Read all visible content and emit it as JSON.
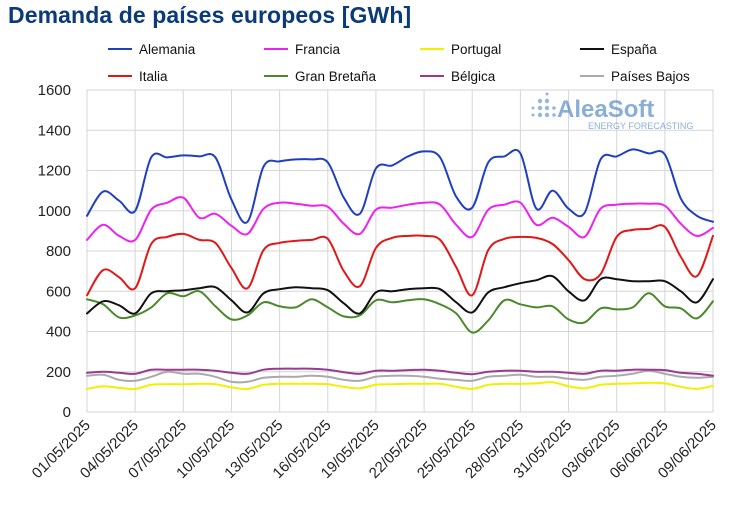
{
  "title": "Demanda de países europeos [GWh]",
  "watermark": {
    "brand": "AleaSoft",
    "tagline": "ENERGY FORECASTING",
    "color": "#2a6fb8"
  },
  "chart_data": {
    "type": "line",
    "title": "Demanda de países europeos [GWh]",
    "xlabel": "",
    "ylabel": "",
    "ylim": [
      0,
      1600
    ],
    "yticks": [
      0,
      200,
      400,
      600,
      800,
      1000,
      1200,
      1400,
      1600
    ],
    "grid": true,
    "legend": "top",
    "x_labels": [
      "01/05/2025",
      "04/05/2025",
      "07/05/2025",
      "10/05/2025",
      "13/05/2025",
      "16/05/2025",
      "19/05/2025",
      "22/05/2025",
      "25/05/2025",
      "28/05/2025",
      "31/05/2025",
      "03/06/2025",
      "06/06/2025",
      "09/06/2025"
    ],
    "x": [
      "01/05",
      "02/05",
      "03/05",
      "04/05",
      "05/05",
      "06/05",
      "07/05",
      "08/05",
      "09/05",
      "10/05",
      "11/05",
      "12/05",
      "13/05",
      "14/05",
      "15/05",
      "16/05",
      "17/05",
      "18/05",
      "19/05",
      "20/05",
      "21/05",
      "22/05",
      "23/05",
      "24/05",
      "25/05",
      "26/05",
      "27/05",
      "28/05",
      "29/05",
      "30/05",
      "31/05",
      "01/06",
      "02/06",
      "03/06",
      "04/06",
      "05/06",
      "06/06",
      "07/06",
      "08/06",
      "09/06"
    ],
    "series": [
      {
        "name": "Alemania",
        "color": "#1f3fbf",
        "values": [
          975,
          1095,
          1050,
          1000,
          1265,
          1265,
          1275,
          1270,
          1265,
          1055,
          945,
          1220,
          1245,
          1255,
          1255,
          1240,
          1065,
          985,
          1210,
          1225,
          1270,
          1295,
          1265,
          1070,
          1015,
          1240,
          1270,
          1285,
          1010,
          1100,
          1010,
          990,
          1255,
          1270,
          1305,
          1285,
          1280,
          1060,
          975,
          945
        ]
      },
      {
        "name": "Francia",
        "color": "#ee22ee",
        "values": [
          855,
          930,
          875,
          855,
          1005,
          1040,
          1065,
          965,
          985,
          925,
          885,
          1010,
          1040,
          1035,
          1025,
          1020,
          935,
          885,
          1005,
          1015,
          1030,
          1040,
          1030,
          930,
          870,
          1005,
          1030,
          1040,
          930,
          965,
          920,
          870,
          1010,
          1030,
          1035,
          1035,
          1025,
          935,
          875,
          915
        ]
      },
      {
        "name": "Portugal",
        "color": "#f0f000",
        "values": [
          115,
          128,
          120,
          115,
          135,
          138,
          138,
          140,
          138,
          122,
          115,
          135,
          140,
          140,
          140,
          138,
          125,
          118,
          135,
          138,
          140,
          140,
          140,
          125,
          115,
          135,
          140,
          140,
          142,
          148,
          128,
          118,
          135,
          140,
          142,
          145,
          142,
          125,
          115,
          130
        ]
      },
      {
        "name": "España",
        "color": "#111111",
        "values": [
          490,
          550,
          530,
          490,
          590,
          600,
          605,
          615,
          620,
          555,
          495,
          590,
          610,
          620,
          615,
          605,
          540,
          490,
          595,
          600,
          610,
          615,
          610,
          545,
          495,
          595,
          620,
          640,
          655,
          675,
          600,
          555,
          660,
          660,
          650,
          650,
          650,
          600,
          545,
          660
        ]
      },
      {
        "name": "Italia",
        "color": "#e01818",
        "values": [
          580,
          705,
          670,
          615,
          835,
          870,
          885,
          855,
          840,
          715,
          615,
          805,
          840,
          850,
          855,
          860,
          700,
          625,
          815,
          865,
          875,
          875,
          855,
          720,
          580,
          805,
          860,
          870,
          865,
          835,
          755,
          660,
          685,
          870,
          905,
          910,
          920,
          770,
          675,
          875
        ]
      },
      {
        "name": "Gran Bretaña",
        "color": "#4a8a2a",
        "values": [
          560,
          535,
          470,
          480,
          520,
          590,
          575,
          600,
          525,
          460,
          480,
          545,
          525,
          520,
          560,
          520,
          475,
          480,
          555,
          545,
          555,
          560,
          535,
          490,
          395,
          455,
          555,
          535,
          520,
          525,
          460,
          445,
          515,
          510,
          520,
          590,
          525,
          515,
          465,
          550
        ]
      },
      {
        "name": "Bélgica",
        "color": "#9a3b8f",
        "values": [
          195,
          200,
          195,
          190,
          210,
          210,
          210,
          210,
          205,
          195,
          190,
          210,
          215,
          215,
          215,
          210,
          198,
          190,
          205,
          205,
          208,
          210,
          205,
          195,
          188,
          200,
          205,
          205,
          200,
          200,
          195,
          190,
          205,
          205,
          210,
          210,
          208,
          195,
          190,
          180
        ]
      },
      {
        "name": "Países Bajos",
        "color": "#aaaaaa",
        "values": [
          180,
          185,
          160,
          155,
          175,
          200,
          190,
          190,
          175,
          150,
          150,
          170,
          175,
          175,
          180,
          175,
          160,
          155,
          175,
          180,
          180,
          175,
          165,
          160,
          155,
          175,
          180,
          185,
          175,
          175,
          165,
          160,
          175,
          180,
          190,
          205,
          190,
          175,
          170,
          175
        ]
      }
    ]
  }
}
